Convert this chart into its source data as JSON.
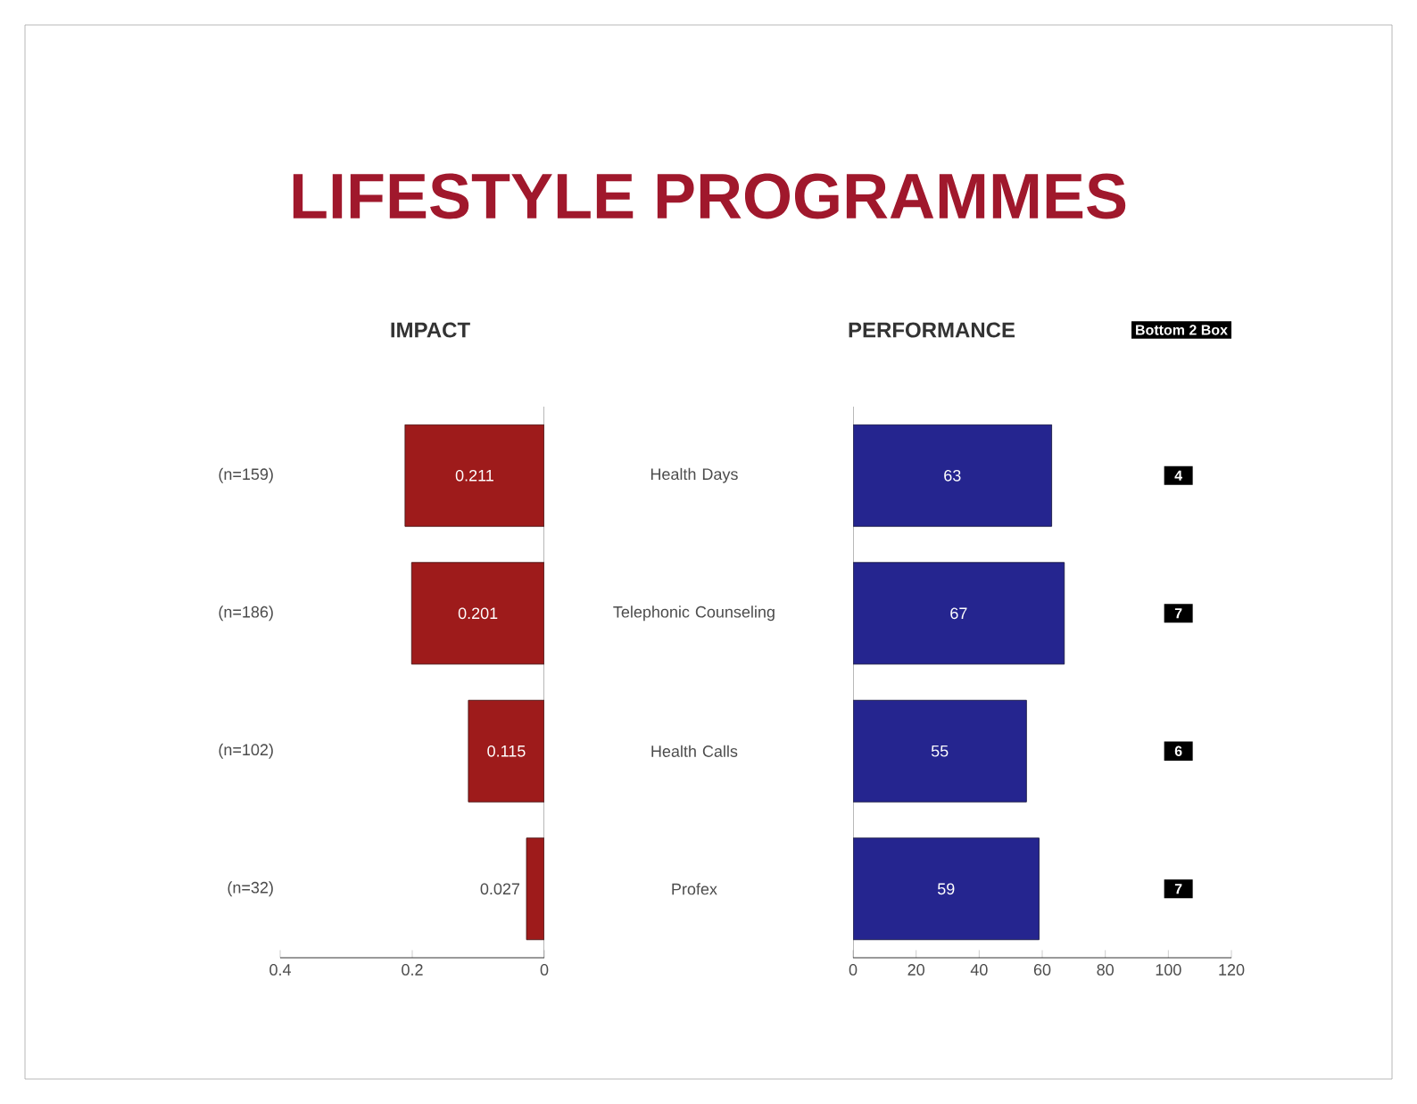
{
  "chart_data": [
    {
      "type": "bar",
      "orientation": "horizontal",
      "title": "LIFESTYLE PROGRAMMES",
      "subtitle": "IMPACT",
      "categories": [
        "(n=159)",
        "(n=186)",
        "(n=102)",
        "(n=32)"
      ],
      "values": [
        0.211,
        0.201,
        0.115,
        0.027
      ],
      "color": "#9e1b1b",
      "xlim": [
        0.4,
        0
      ],
      "xticks": [
        0.4,
        0.2,
        0
      ],
      "data_labels": true
    },
    {
      "type": "bar",
      "orientation": "horizontal",
      "title": "PERFORMANCE",
      "categories": [
        "Health Days",
        "Telephonic Counseling",
        "Health Calls",
        "Profex"
      ],
      "values": [
        63,
        67,
        55,
        59
      ],
      "color": "#25258f",
      "xlim": [
        0,
        120
      ],
      "xticks": [
        0,
        20,
        40,
        60,
        80,
        100,
        120
      ],
      "data_labels": true,
      "annotations": [
        "Bottom 2 Box",
        "4",
        "7",
        "6",
        "7"
      ]
    }
  ]
}
